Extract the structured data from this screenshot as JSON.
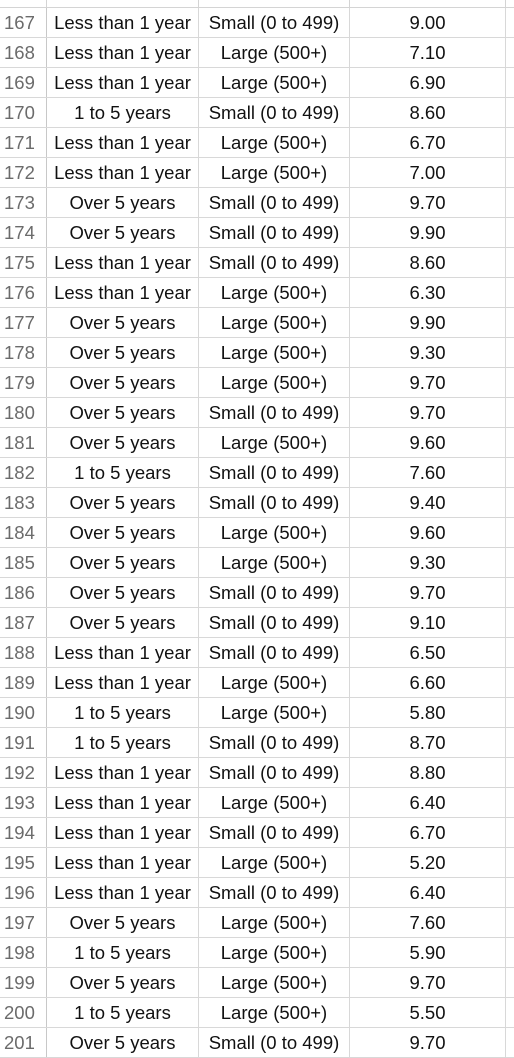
{
  "rows": [
    {
      "num": "167",
      "experience": "Less than 1 year",
      "size": "Small (0 to 499)",
      "score": "9.00"
    },
    {
      "num": "168",
      "experience": "Less than 1 year",
      "size": "Large (500+)",
      "score": "7.10"
    },
    {
      "num": "169",
      "experience": "Less than 1 year",
      "size": "Large (500+)",
      "score": "6.90"
    },
    {
      "num": "170",
      "experience": "1 to 5 years",
      "size": "Small (0 to 499)",
      "score": "8.60"
    },
    {
      "num": "171",
      "experience": "Less than 1 year",
      "size": "Large (500+)",
      "score": "6.70"
    },
    {
      "num": "172",
      "experience": "Less than 1 year",
      "size": "Large (500+)",
      "score": "7.00"
    },
    {
      "num": "173",
      "experience": "Over 5 years",
      "size": "Small (0 to 499)",
      "score": "9.70"
    },
    {
      "num": "174",
      "experience": "Over 5 years",
      "size": "Small (0 to 499)",
      "score": "9.90"
    },
    {
      "num": "175",
      "experience": "Less than 1 year",
      "size": "Small (0 to 499)",
      "score": "8.60"
    },
    {
      "num": "176",
      "experience": "Less than 1 year",
      "size": "Large (500+)",
      "score": "6.30"
    },
    {
      "num": "177",
      "experience": "Over 5 years",
      "size": "Large (500+)",
      "score": "9.90"
    },
    {
      "num": "178",
      "experience": "Over 5 years",
      "size": "Large (500+)",
      "score": "9.30"
    },
    {
      "num": "179",
      "experience": "Over 5 years",
      "size": "Large (500+)",
      "score": "9.70"
    },
    {
      "num": "180",
      "experience": "Over 5 years",
      "size": "Small (0 to 499)",
      "score": "9.70"
    },
    {
      "num": "181",
      "experience": "Over 5 years",
      "size": "Large (500+)",
      "score": "9.60"
    },
    {
      "num": "182",
      "experience": "1 to 5 years",
      "size": "Small (0 to 499)",
      "score": "7.60"
    },
    {
      "num": "183",
      "experience": "Over 5 years",
      "size": "Small (0 to 499)",
      "score": "9.40"
    },
    {
      "num": "184",
      "experience": "Over 5 years",
      "size": "Large (500+)",
      "score": "9.60"
    },
    {
      "num": "185",
      "experience": "Over 5 years",
      "size": "Large (500+)",
      "score": "9.30"
    },
    {
      "num": "186",
      "experience": "Over 5 years",
      "size": "Small (0 to 499)",
      "score": "9.70"
    },
    {
      "num": "187",
      "experience": "Over 5 years",
      "size": "Small (0 to 499)",
      "score": "9.10"
    },
    {
      "num": "188",
      "experience": "Less than 1 year",
      "size": "Small (0 to 499)",
      "score": "6.50"
    },
    {
      "num": "189",
      "experience": "Less than 1 year",
      "size": "Large (500+)",
      "score": "6.60"
    },
    {
      "num": "190",
      "experience": "1 to 5 years",
      "size": "Large (500+)",
      "score": "5.80"
    },
    {
      "num": "191",
      "experience": "1 to 5 years",
      "size": "Small (0 to 499)",
      "score": "8.70"
    },
    {
      "num": "192",
      "experience": "Less than 1 year",
      "size": "Small (0 to 499)",
      "score": "8.80"
    },
    {
      "num": "193",
      "experience": "Less than 1 year",
      "size": "Large (500+)",
      "score": "6.40"
    },
    {
      "num": "194",
      "experience": "Less than 1 year",
      "size": "Small (0 to 499)",
      "score": "6.70"
    },
    {
      "num": "195",
      "experience": "Less than 1 year",
      "size": "Large (500+)",
      "score": "5.20"
    },
    {
      "num": "196",
      "experience": "Less than 1 year",
      "size": "Small (0 to 499)",
      "score": "6.40"
    },
    {
      "num": "197",
      "experience": "Over 5 years",
      "size": "Large (500+)",
      "score": "7.60"
    },
    {
      "num": "198",
      "experience": "1 to 5 years",
      "size": "Large (500+)",
      "score": "5.90"
    },
    {
      "num": "199",
      "experience": "Over 5 years",
      "size": "Large (500+)",
      "score": "9.70"
    },
    {
      "num": "200",
      "experience": "1 to 5 years",
      "size": "Large (500+)",
      "score": "5.50"
    },
    {
      "num": "201",
      "experience": "Over 5 years",
      "size": "Small (0 to 499)",
      "score": "9.70"
    }
  ]
}
